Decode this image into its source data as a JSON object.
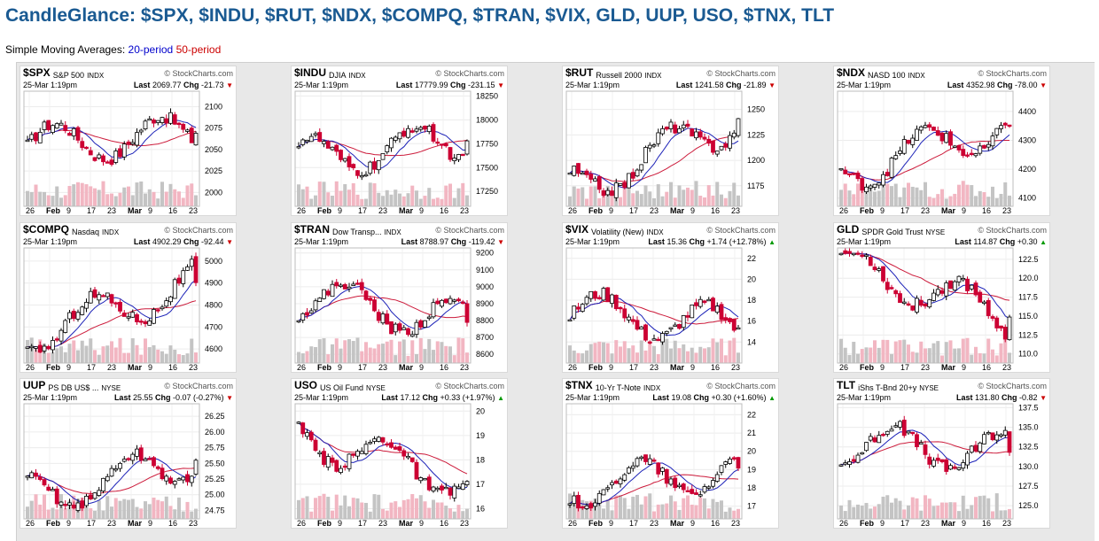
{
  "page": {
    "title": "CandleGlance: $SPX, $INDU, $RUT, $NDX, $COMPQ, $TRAN, $VIX, GLD, UUP, USO, $TNX, TLT",
    "sma_label": "Simple Moving Averages:",
    "sma20_label": "20-period",
    "sma50_label": "50-period",
    "sma20_color": "#1c22b8",
    "sma50_color": "#cc1a3a",
    "up_candle_color": "#000000",
    "down_candle_color": "#cc0033"
  },
  "common": {
    "date": "25-Mar 1:19pm",
    "source": "© StockCharts.com",
    "x_labels": [
      "26",
      "Feb",
      "9",
      "17",
      "23",
      "Mar",
      "9",
      "16",
      "23"
    ]
  },
  "panels": [
    {
      "symbol": "$SPX",
      "name": "S&P 500",
      "exchange": "INDX",
      "last": "2069.77",
      "chg": "-21.73",
      "dir": "down",
      "yticks": [
        "2100",
        "2075",
        "2050",
        "2025",
        "2000"
      ],
      "start": 2055,
      "end": 2069,
      "low": 1990,
      "high": 2118
    },
    {
      "symbol": "$INDU",
      "name": "DJIA",
      "exchange": "INDX",
      "last": "17779.99",
      "chg": "-231.15",
      "dir": "down",
      "yticks": [
        "18250",
        "18000",
        "17750",
        "17500",
        "17250"
      ],
      "start": 17600,
      "end": 17780,
      "low": 17150,
      "high": 18300
    },
    {
      "symbol": "$RUT",
      "name": "Russell 2000",
      "exchange": "INDX",
      "last": "1241.58",
      "chg": "-21.89",
      "dir": "down",
      "yticks": [
        "1250",
        "1225",
        "1200",
        "1175"
      ],
      "start": 1172,
      "end": 1241,
      "low": 1160,
      "high": 1268
    },
    {
      "symbol": "$NDX",
      "name": "NASD 100",
      "exchange": "INDX",
      "last": "4352.98",
      "chg": "-78.00",
      "dir": "down",
      "yticks": [
        "4400",
        "4300",
        "4200",
        "4100"
      ],
      "start": 4190,
      "end": 4353,
      "low": 4090,
      "high": 4470
    },
    {
      "symbol": "$COMPQ",
      "name": "Nasdaq",
      "exchange": "INDX",
      "last": "4902.29",
      "chg": "-92.44",
      "dir": "down",
      "yticks": [
        "5000",
        "4900",
        "4800",
        "4700",
        "4600"
      ],
      "start": 4660,
      "end": 4902,
      "low": 4560,
      "high": 5060
    },
    {
      "symbol": "$TRAN",
      "name": "Dow Transp...",
      "exchange": "INDX",
      "last": "8788.97",
      "chg": "-119.42",
      "dir": "down",
      "yticks": [
        "9200",
        "9100",
        "9000",
        "8900",
        "8800",
        "8700",
        "8600"
      ],
      "start": 8950,
      "end": 8789,
      "low": 8580,
      "high": 9230
    },
    {
      "symbol": "$VIX",
      "name": "Volatility (New)",
      "exchange": "INDX",
      "last": "15.36",
      "chg": "+1.74 (+12.78%)",
      "dir": "up",
      "yticks": [
        "22",
        "20",
        "18",
        "16",
        "14"
      ],
      "start": 17,
      "end": 15.36,
      "low": 12.5,
      "high": 23
    },
    {
      "symbol": "GLD",
      "name": "SPDR Gold Trust",
      "exchange": "NYSE",
      "last": "114.87",
      "chg": "+0.30",
      "dir": "up",
      "yticks": [
        "122.5",
        "120.0",
        "117.5",
        "115.0",
        "112.5",
        "110.0"
      ],
      "start": 122,
      "end": 114.87,
      "low": 109.5,
      "high": 124
    },
    {
      "symbol": "UUP",
      "name": "PS DB US$ ...",
      "exchange": "NYSE",
      "last": "25.55",
      "chg": "-0.07 (-0.27%)",
      "dir": "down",
      "yticks": [
        "26.25",
        "26.00",
        "25.75",
        "25.50",
        "25.25",
        "25.00",
        "24.75"
      ],
      "start": 24.95,
      "end": 25.55,
      "low": 24.7,
      "high": 26.45
    },
    {
      "symbol": "USO",
      "name": "US Oil Fund",
      "exchange": "NYSE",
      "last": "17.12",
      "chg": "+0.33 (+1.97%)",
      "dir": "up",
      "yticks": [
        "20",
        "19",
        "18",
        "17",
        "16"
      ],
      "start": 19,
      "end": 17.12,
      "low": 15.8,
      "high": 20.3
    },
    {
      "symbol": "$TNX",
      "name": "10-Yr T-Note",
      "exchange": "INDX",
      "last": "19.08",
      "chg": "+0.30 (+1.60%)",
      "dir": "up",
      "yticks": [
        "22",
        "21",
        "20",
        "19",
        "18",
        "17"
      ],
      "start": 18,
      "end": 19.08,
      "low": 16.6,
      "high": 22.6
    },
    {
      "symbol": "TLT",
      "name": "iShs T-Bnd 20+y",
      "exchange": "NYSE",
      "last": "131.80",
      "chg": "-0.82",
      "dir": "down",
      "yticks": [
        "137.5",
        "135.0",
        "132.5",
        "130.0",
        "127.5",
        "125.0"
      ],
      "start": 133,
      "end": 131.8,
      "low": 124,
      "high": 138
    }
  ]
}
